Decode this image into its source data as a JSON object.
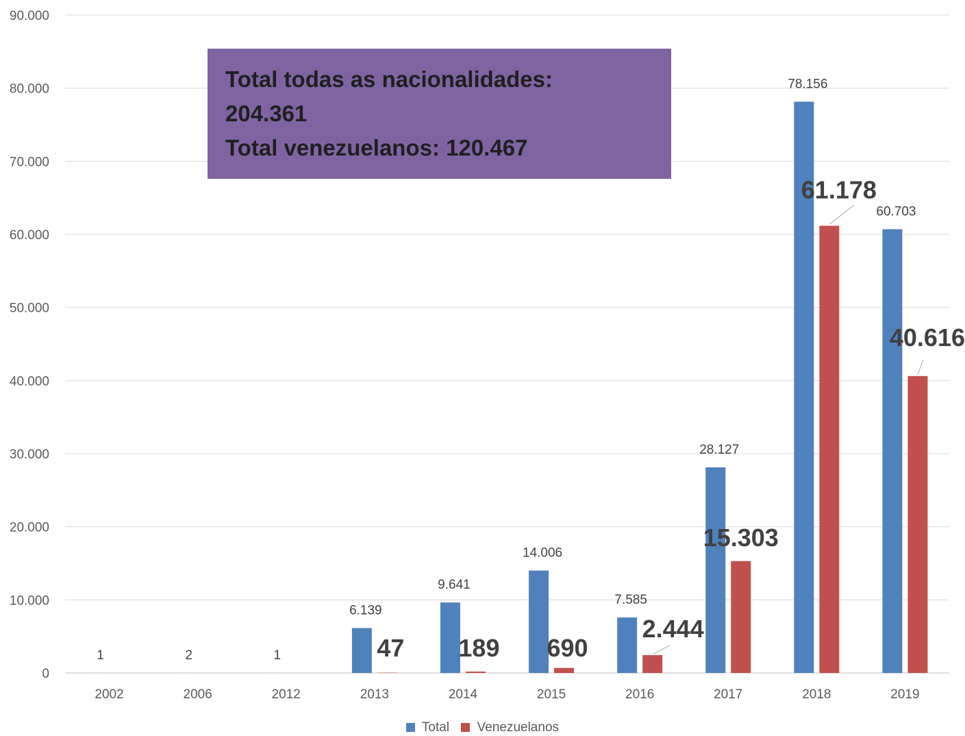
{
  "chart_data": {
    "type": "bar",
    "categories": [
      "2002",
      "2006",
      "2012",
      "2013",
      "2014",
      "2015",
      "2016",
      "2017",
      "2018",
      "2019"
    ],
    "series": [
      {
        "name": "Total",
        "color": "#4f81bd",
        "values": [
          1,
          2,
          1,
          6139,
          9641,
          14006,
          7585,
          28127,
          78156,
          60703
        ],
        "labels": [
          "1",
          "2",
          "1",
          "6.139",
          "9.641",
          "14.006",
          "7.585",
          "28.127",
          "78.156",
          "60.703"
        ]
      },
      {
        "name": "Venezuelanos",
        "color": "#c0504d",
        "values": [
          null,
          null,
          null,
          47,
          189,
          690,
          2444,
          15303,
          61178,
          40616
        ],
        "labels": [
          "",
          "",
          "",
          "47",
          "189",
          "690",
          "2.444",
          "15.303",
          "61.178",
          "40.616"
        ]
      }
    ],
    "ylim": [
      0,
      90000
    ],
    "yticks": [
      0,
      10000,
      20000,
      30000,
      40000,
      50000,
      60000,
      70000,
      80000,
      90000
    ],
    "ytick_labels": [
      "0",
      "10.000",
      "20.000",
      "30.000",
      "40.000",
      "50.000",
      "60.000",
      "70.000",
      "80.000",
      "90.000"
    ],
    "grid": true,
    "legend_position": "bottom",
    "annotation": {
      "lines": [
        "Total todas as nacionalidades:",
        "204.361",
        "Total venezuelanos: 120.467"
      ],
      "color": "#8064a2"
    }
  }
}
